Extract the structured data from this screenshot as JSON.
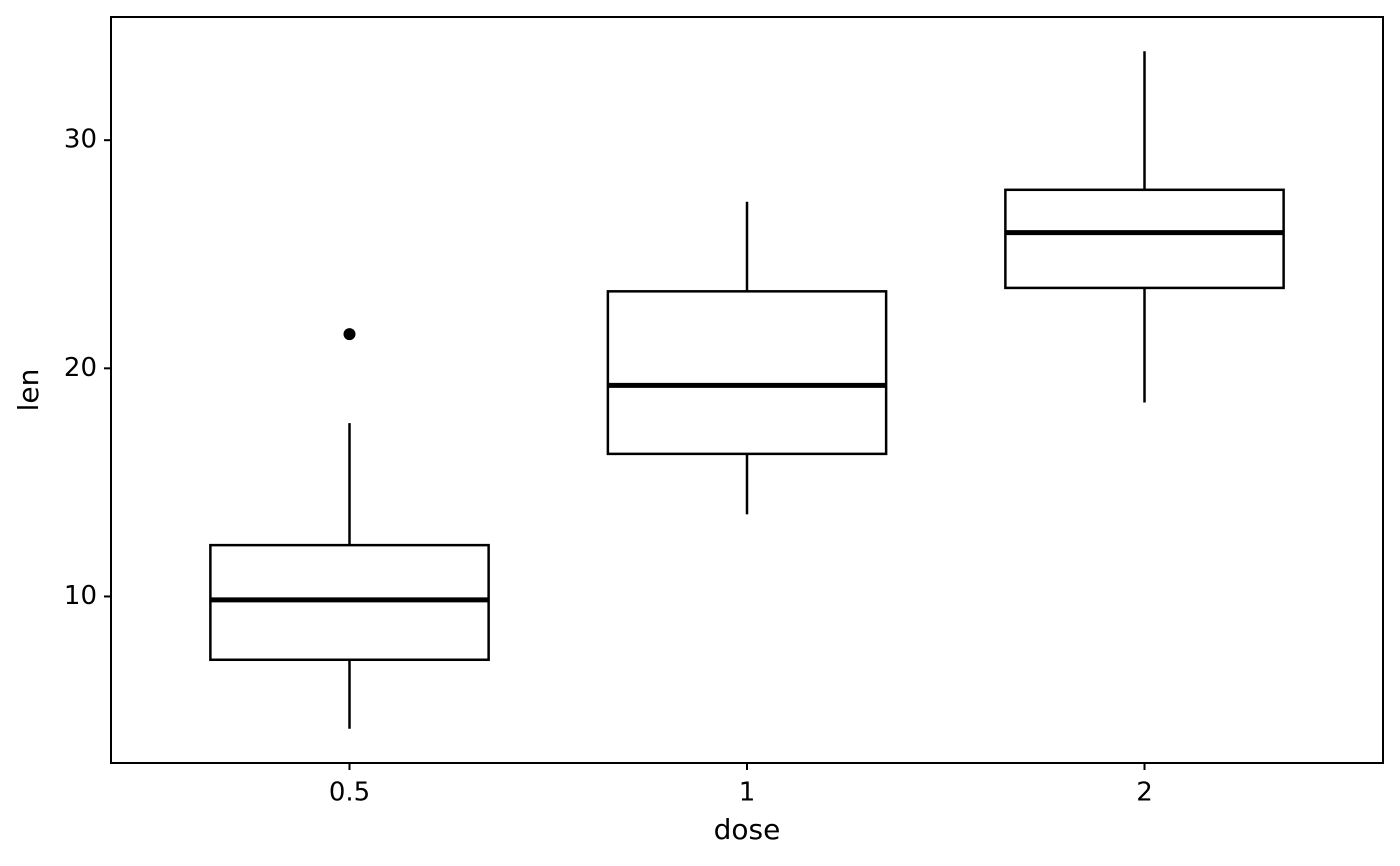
{
  "chart_data": {
    "type": "box",
    "x_label": "dose",
    "y_label": "len",
    "categories": [
      "0.5",
      "1",
      "2"
    ],
    "boxes": [
      {
        "min": 4.2,
        "q1": 7.225,
        "median": 9.85,
        "q3": 12.25,
        "max": 17.6,
        "outliers": [
          21.5
        ]
      },
      {
        "min": 13.6,
        "q1": 16.25,
        "median": 19.25,
        "q3": 23.375,
        "max": 27.3,
        "outliers": []
      },
      {
        "min": 18.5,
        "q1": 23.525,
        "median": 25.95,
        "q3": 27.825,
        "max": 33.9,
        "outliers": []
      }
    ],
    "color": "#000000",
    "ylim": [
      2.7,
      35.4
    ],
    "yticks": [
      10,
      20,
      30
    ],
    "grid": false
  }
}
